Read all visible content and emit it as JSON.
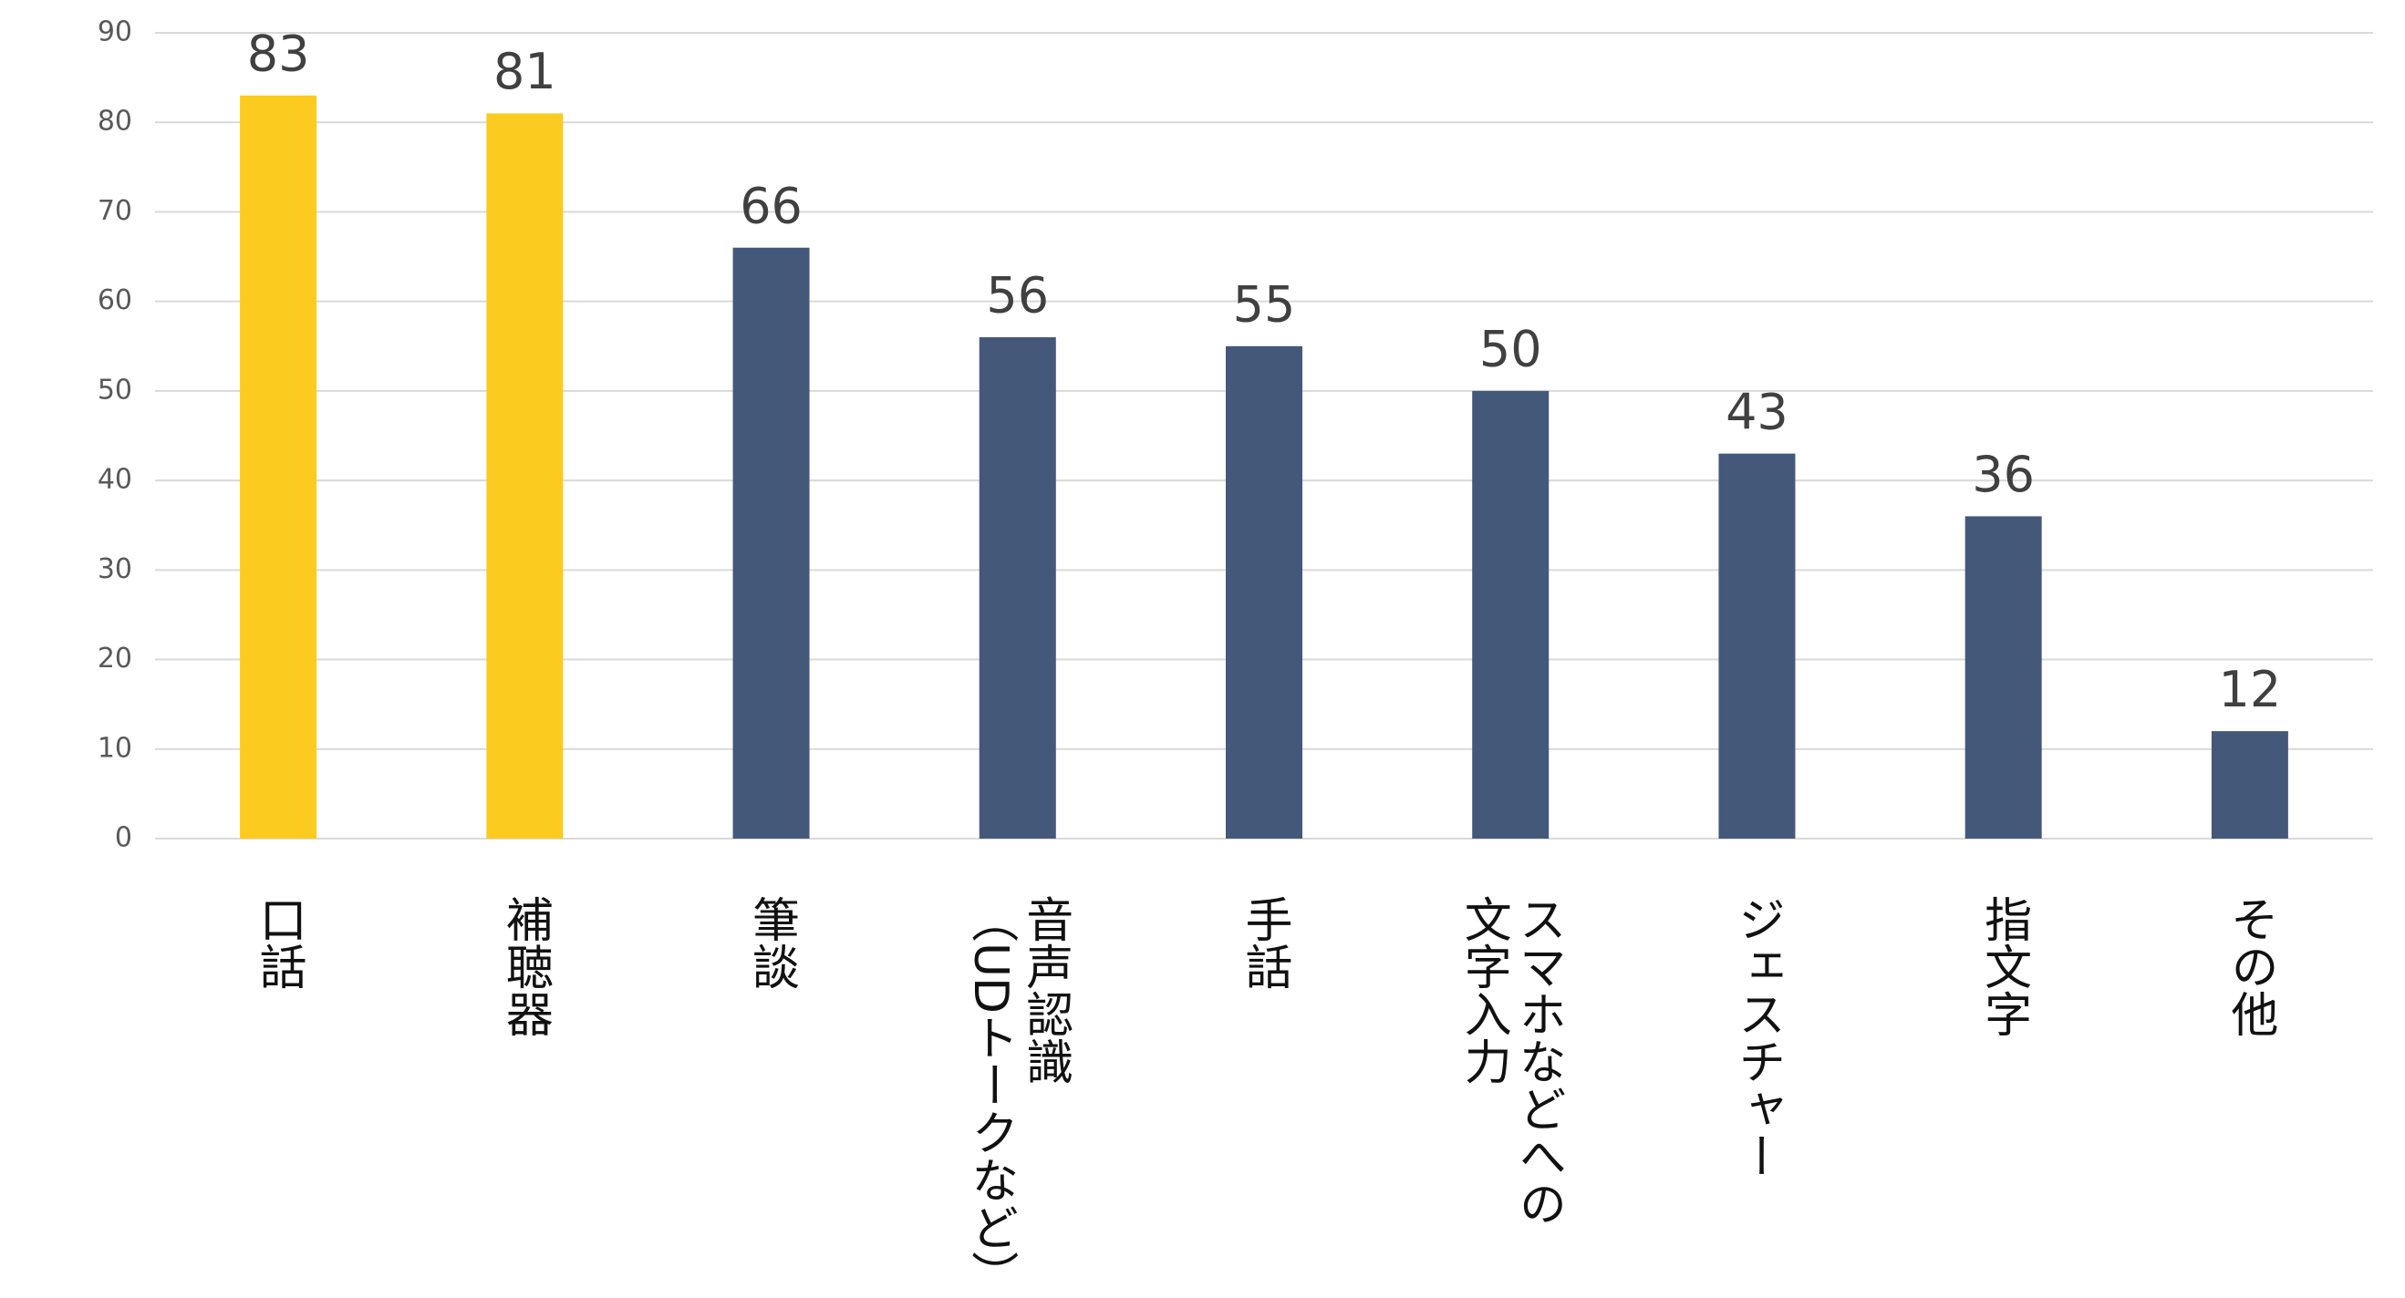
{
  "chart_data": {
    "type": "bar",
    "categories": [
      "口話",
      "補聴器",
      "筆談",
      "音声認識\n（UDトークなど）",
      "手話",
      "スマホなどへの\n文字入力",
      "ジェスチャー",
      "指文字",
      "その他"
    ],
    "values": [
      83,
      81,
      66,
      56,
      55,
      50,
      43,
      36,
      12
    ],
    "colors": [
      "#FBCB1F",
      "#FBCB1F",
      "#44587A",
      "#44587A",
      "#44587A",
      "#44587A",
      "#44587A",
      "#44587A",
      "#44587A"
    ],
    "ylim": [
      0,
      90
    ],
    "yticks": [
      0,
      10,
      20,
      30,
      40,
      50,
      60,
      70,
      80,
      90
    ],
    "grid": true
  }
}
